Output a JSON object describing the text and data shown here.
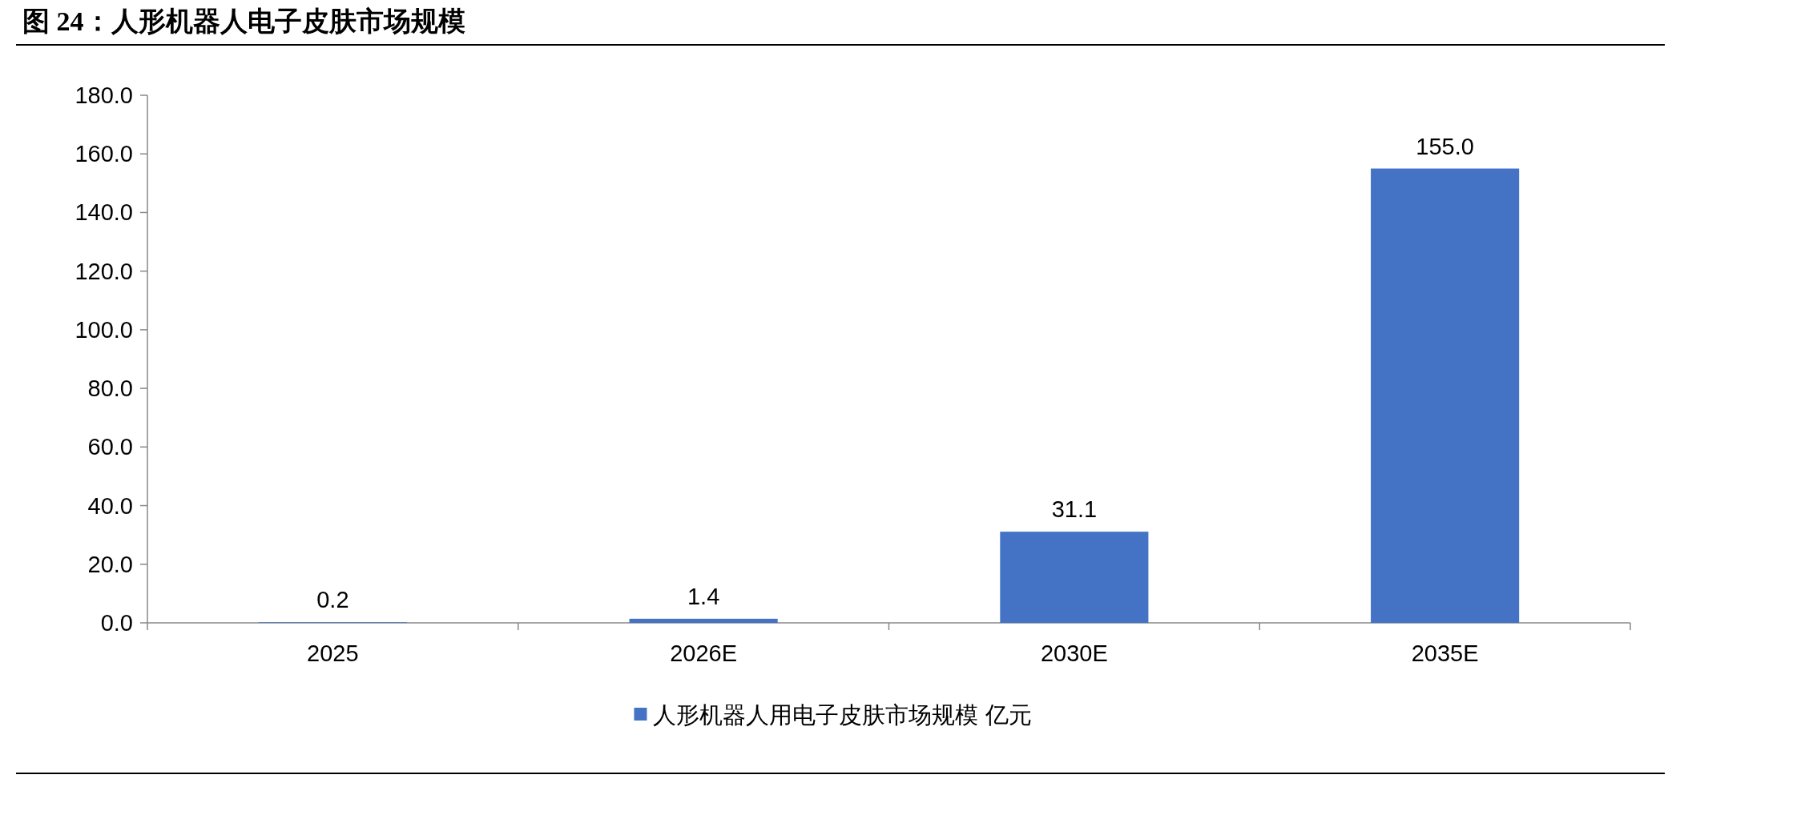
{
  "chart_data": {
    "type": "bar",
    "title": "图 24：人形机器人电子皮肤市场规模",
    "categories": [
      "2025",
      "2026E",
      "2030E",
      "2035E"
    ],
    "series": [
      {
        "name": "人形机器人用电子皮肤市场规模 亿元",
        "color": "#4472c4",
        "values": [
          0.2,
          1.4,
          31.1,
          155.0
        ],
        "value_labels": [
          "0.2",
          "1.4",
          "31.1",
          "155.0"
        ]
      }
    ],
    "ylim": [
      0,
      180
    ],
    "yticks": [
      {
        "value": 0,
        "label": "0.0"
      },
      {
        "value": 20,
        "label": "20.0"
      },
      {
        "value": 40,
        "label": "40.0"
      },
      {
        "value": 60,
        "label": "60.0"
      },
      {
        "value": 80,
        "label": "80.0"
      },
      {
        "value": 100,
        "label": "100.0"
      },
      {
        "value": 120,
        "label": "120.0"
      },
      {
        "value": 140,
        "label": "140.0"
      },
      {
        "value": 160,
        "label": "160.0"
      },
      {
        "value": 180,
        "label": "180.0"
      }
    ],
    "legend": "bottom"
  }
}
